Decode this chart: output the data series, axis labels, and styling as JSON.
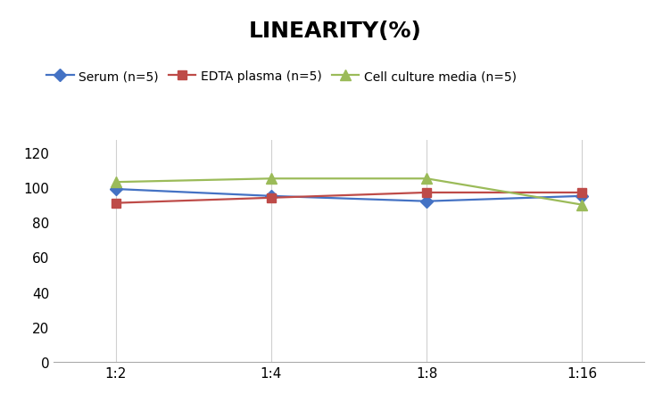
{
  "title": "LINEARITY(%)",
  "title_fontsize": 18,
  "title_fontweight": "bold",
  "x_labels": [
    "1:2",
    "1:4",
    "1:8",
    "1:16"
  ],
  "series": [
    {
      "label": "Serum (n=5)",
      "values": [
        99,
        95,
        92,
        95
      ],
      "color": "#4472C4",
      "marker": "D",
      "markersize": 7
    },
    {
      "label": "EDTA plasma (n=5)",
      "values": [
        91,
        94,
        97,
        97
      ],
      "color": "#BE4B48",
      "marker": "s",
      "markersize": 7
    },
    {
      "label": "Cell culture media (n=5)",
      "values": [
        103,
        105,
        105,
        90
      ],
      "color": "#9BBB59",
      "marker": "^",
      "markersize": 8
    }
  ],
  "ylim": [
    0,
    127
  ],
  "yticks": [
    0,
    20,
    40,
    60,
    80,
    100,
    120
  ],
  "grid_color": "#D0D0D0",
  "background_color": "#FFFFFF",
  "legend_fontsize": 10,
  "axis_tick_fontsize": 11,
  "linewidth": 1.6
}
